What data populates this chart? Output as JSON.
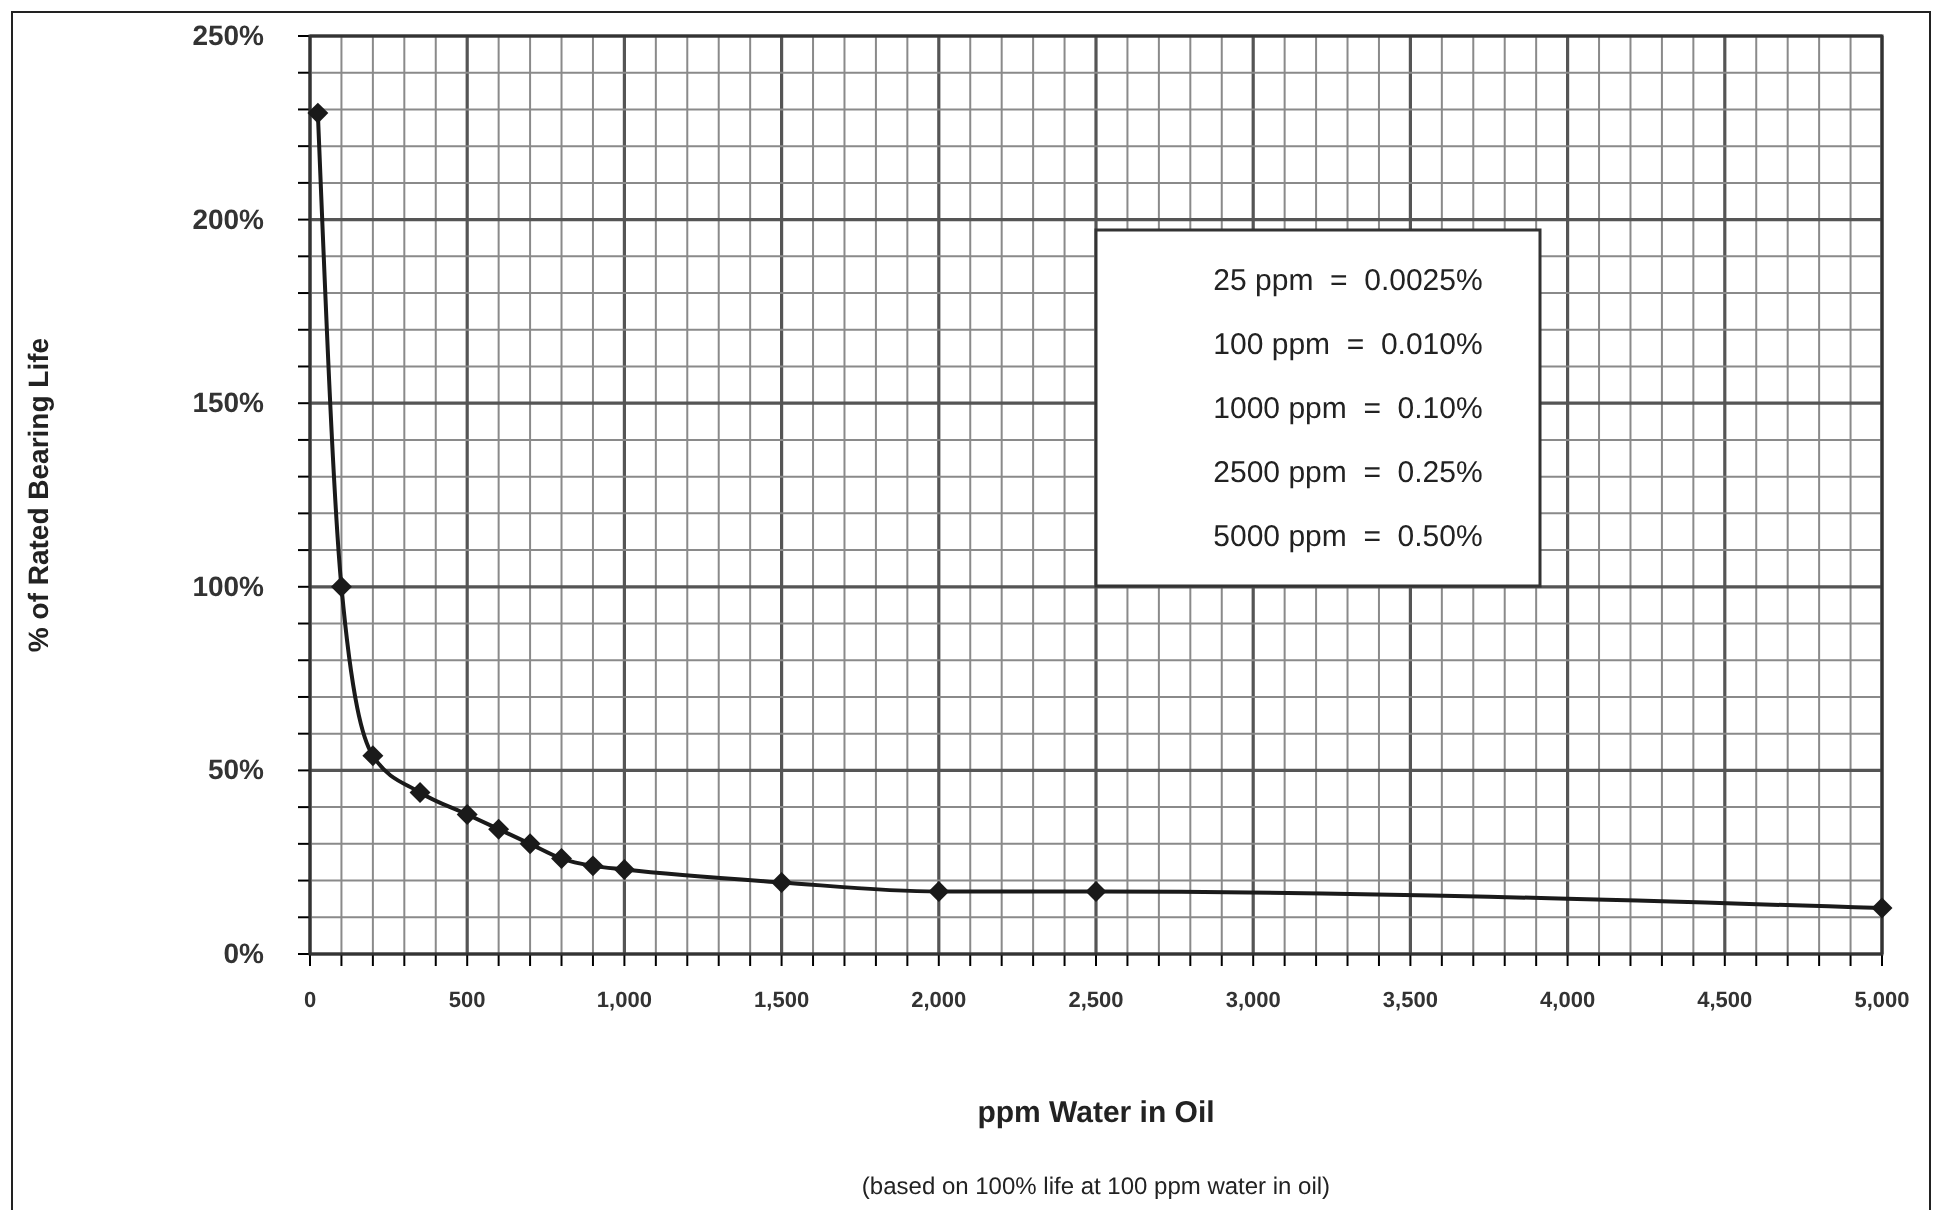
{
  "chart_data": {
    "type": "line",
    "xlabel": "ppm Water in Oil",
    "ylabel": "% of Rated Bearing Life",
    "annotations": [
      "25 ppm  =  0.0025%",
      "100 ppm  =  0.010%",
      "1000 ppm  =  0.10%",
      "2500 ppm  =  0.25%",
      "5000 ppm  =  0.50%",
      "(based on 100% life at 100 ppm water in oil)"
    ],
    "x": [
      25,
      100,
      200,
      350,
      500,
      600,
      700,
      800,
      900,
      1000,
      1500,
      2000,
      2500,
      5000
    ],
    "series": [
      {
        "color": "#1a1a1a",
        "values": [
          229,
          100,
          54,
          44,
          38,
          34,
          30,
          26,
          24,
          23,
          19.5,
          17,
          17,
          12.5
        ]
      }
    ],
    "xlim": [
      0,
      5000
    ],
    "xticks": [
      0,
      {
        "value": 100,
        "label": null
      },
      {
        "value": 200,
        "label": null
      },
      {
        "value": 300,
        "label": null
      },
      {
        "value": 400,
        "label": null
      },
      500,
      {
        "value": 600,
        "label": null
      },
      {
        "value": 700,
        "label": null
      },
      {
        "value": 800,
        "label": null
      },
      {
        "value": 900,
        "label": null
      },
      {
        "value": 1000,
        "label": "1,000"
      },
      {
        "value": 1100,
        "label": null
      },
      {
        "value": 1200,
        "label": null
      },
      {
        "value": 1300,
        "label": null
      },
      {
        "value": 1400,
        "label": null
      },
      {
        "value": 1500,
        "label": "1,500"
      },
      {
        "value": 1600,
        "label": null
      },
      {
        "value": 1700,
        "label": null
      },
      {
        "value": 1800,
        "label": null
      },
      {
        "value": 1900,
        "label": null
      },
      {
        "value": 2000,
        "label": "2,000"
      },
      {
        "value": 2100,
        "label": null
      },
      {
        "value": 2200,
        "label": null
      },
      {
        "value": 2300,
        "label": null
      },
      {
        "value": 2400,
        "label": null
      },
      {
        "value": 2500,
        "label": "2,500"
      },
      {
        "value": 2600,
        "label": null
      },
      {
        "value": 2700,
        "label": null
      },
      {
        "value": 2800,
        "label": null
      },
      {
        "value": 2900,
        "label": null
      },
      {
        "value": 3000,
        "label": "3,000"
      },
      {
        "value": 3100,
        "label": null
      },
      {
        "value": 3200,
        "label": null
      },
      {
        "value": 3300,
        "label": null
      },
      {
        "value": 3400,
        "label": null
      },
      {
        "value": 3500,
        "label": "3,500"
      },
      {
        "value": 3600,
        "label": null
      },
      {
        "value": 3700,
        "label": null
      },
      {
        "value": 3800,
        "label": null
      },
      {
        "value": 3900,
        "label": null
      },
      {
        "value": 4000,
        "label": "4,000"
      },
      {
        "value": 4100,
        "label": null
      },
      {
        "value": 4200,
        "label": null
      },
      {
        "value": 4300,
        "label": null
      },
      {
        "value": 4400,
        "label": null
      },
      {
        "value": 4500,
        "label": "4,500"
      },
      {
        "value": 4600,
        "label": null
      },
      {
        "value": 4700,
        "label": null
      },
      {
        "value": 4800,
        "label": null
      },
      {
        "value": 4900,
        "label": null
      },
      {
        "value": 5000,
        "label": "5,000"
      }
    ],
    "ylim": [
      0,
      250
    ],
    "yticks": [
      {
        "value": 0,
        "label": "0%"
      },
      {
        "value": 10,
        "label": null
      },
      {
        "value": 20,
        "label": null
      },
      {
        "value": 30,
        "label": null
      },
      {
        "value": 40,
        "label": null
      },
      {
        "value": 50,
        "label": "50%"
      },
      {
        "value": 60,
        "label": null
      },
      {
        "value": 70,
        "label": null
      },
      {
        "value": 80,
        "label": null
      },
      {
        "value": 90,
        "label": null
      },
      {
        "value": 100,
        "label": "100%"
      },
      {
        "value": 110,
        "label": null
      },
      {
        "value": 120,
        "label": null
      },
      {
        "value": 130,
        "label": null
      },
      {
        "value": 140,
        "label": null
      },
      {
        "value": 150,
        "label": "150%"
      },
      {
        "value": 160,
        "label": null
      },
      {
        "value": 170,
        "label": null
      },
      {
        "value": 180,
        "label": null
      },
      {
        "value": 190,
        "label": null
      },
      {
        "value": 200,
        "label": "200%"
      },
      {
        "value": 210,
        "label": null
      },
      {
        "value": 220,
        "label": null
      },
      {
        "value": 230,
        "label": null
      },
      {
        "value": 240,
        "label": null
      },
      {
        "value": 250,
        "label": "250%"
      }
    ],
    "grid": true,
    "marker": "diamond",
    "line_style": "solid"
  }
}
